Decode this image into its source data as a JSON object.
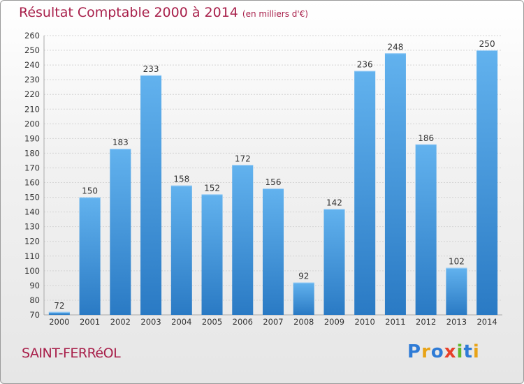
{
  "header": {
    "title": "Résultat Comptable 2000 à 2014",
    "subtitle": "(en milliers d'€)"
  },
  "commune": "SAINT-FERRéOL",
  "logo": {
    "text": "Proxiti"
  },
  "chart_data": {
    "type": "bar",
    "title": "Résultat Comptable 2000 à 2014",
    "subtitle": "(en milliers d'€)",
    "xlabel": "",
    "ylabel": "",
    "categories": [
      "2000",
      "2001",
      "2002",
      "2003",
      "2004",
      "2005",
      "2006",
      "2007",
      "2008",
      "2009",
      "2010",
      "2011",
      "2012",
      "2013",
      "2014"
    ],
    "values": [
      72,
      150,
      183,
      233,
      158,
      152,
      172,
      156,
      92,
      142,
      236,
      248,
      186,
      102,
      250
    ],
    "ylim": [
      70,
      260
    ],
    "ytick_step": 10,
    "grid": true,
    "bar_color": "#4a9de0",
    "bar_color_light": "#6cb8f0",
    "bar_color_dark": "#2a78c0"
  }
}
